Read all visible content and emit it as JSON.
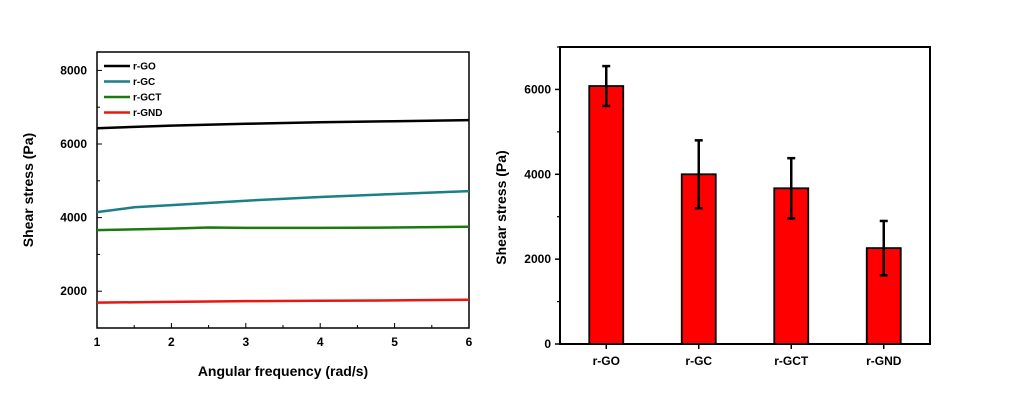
{
  "chart_data": [
    {
      "type": "line",
      "xlabel": "Angular frequency (rad/s)",
      "ylabel": "Shear stress (Pa)",
      "xlim": [
        1,
        6
      ],
      "ylim": [
        1000,
        8500
      ],
      "xticks": [
        1,
        2,
        3,
        4,
        5,
        6
      ],
      "yticks": [
        2000,
        4000,
        6000,
        8000
      ],
      "legend_position": "top-left",
      "grid": false,
      "series": [
        {
          "name": "r-GO",
          "color": "#000000",
          "x": [
            1,
            2,
            3,
            4,
            5,
            6
          ],
          "y": [
            6430,
            6500,
            6550,
            6590,
            6620,
            6650
          ]
        },
        {
          "name": "r-GC",
          "color": "#1a7f86",
          "x": [
            1,
            1.5,
            2,
            3,
            4,
            5,
            6
          ],
          "y": [
            4150,
            4280,
            4340,
            4460,
            4560,
            4640,
            4720
          ]
        },
        {
          "name": "r-GCT",
          "color": "#1a7a10",
          "x": [
            1,
            2,
            2.5,
            3,
            4,
            5,
            6
          ],
          "y": [
            3660,
            3700,
            3730,
            3720,
            3720,
            3730,
            3750
          ]
        },
        {
          "name": "r-GND",
          "color": "#e8170f",
          "x": [
            1,
            2,
            3,
            4,
            5,
            6
          ],
          "y": [
            1690,
            1710,
            1730,
            1740,
            1750,
            1770
          ]
        }
      ]
    },
    {
      "type": "bar",
      "xlabel": "",
      "ylabel": "Shear stress (Pa)",
      "ylim": [
        0,
        7000
      ],
      "yticks": [
        0,
        2000,
        4000,
        6000
      ],
      "bar_color": "#ff0000",
      "categories": [
        "r-GO",
        "r-GC",
        "r-GCT",
        "r-GND"
      ],
      "values": [
        6080,
        4000,
        3670,
        2260
      ],
      "errors": [
        470,
        800,
        710,
        640
      ]
    }
  ]
}
